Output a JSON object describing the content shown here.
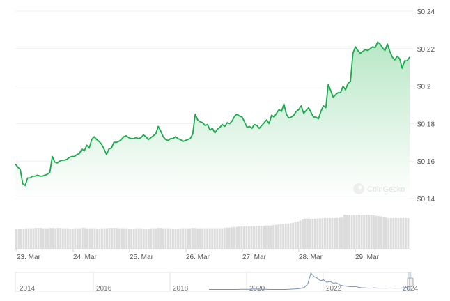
{
  "chart_data": {
    "type": "area",
    "watermark": "CoinGecko",
    "y_ticks": [
      "$0.24",
      "$0.22",
      "$0.2",
      "$0.18",
      "$0.16",
      "$0.14"
    ],
    "y_tick_values": [
      0.24,
      0.22,
      0.2,
      0.18,
      0.16,
      0.14
    ],
    "ylim": [
      0.14,
      0.24
    ],
    "x_ticks": [
      "23. Mar",
      "24. Mar",
      "25. Mar",
      "26. Mar",
      "27. Mar",
      "28. Mar",
      "29. Mar"
    ],
    "grid": true,
    "colors": {
      "line": "#1aa94c",
      "fill_top": "#b4e6c3",
      "fill_bottom": "#ffffff",
      "volume": "#dcdcdc",
      "navigator": "#7a8fb8",
      "grid": "#efefef",
      "text": "#555555"
    },
    "price": [
      0.1585,
      0.1568,
      0.1555,
      0.148,
      0.147,
      0.151,
      0.151,
      0.152,
      0.152,
      0.1525,
      0.152,
      0.152,
      0.1525,
      0.153,
      0.154,
      0.1625,
      0.1595,
      0.159,
      0.16,
      0.1605,
      0.1605,
      0.161,
      0.162,
      0.1625,
      0.1625,
      0.1635,
      0.164,
      0.1665,
      0.1655,
      0.1685,
      0.167,
      0.1715,
      0.173,
      0.1715,
      0.1705,
      0.169,
      0.1665,
      0.1635,
      0.1665,
      0.167,
      0.17,
      0.17,
      0.1705,
      0.1715,
      0.173,
      0.1735,
      0.1725,
      0.172,
      0.172,
      0.1725,
      0.172,
      0.1725,
      0.174,
      0.173,
      0.1715,
      0.1725,
      0.1735,
      0.1745,
      0.1785,
      0.176,
      0.173,
      0.1715,
      0.171,
      0.172,
      0.172,
      0.173,
      0.172,
      0.1715,
      0.1705,
      0.171,
      0.1715,
      0.172,
      0.1745,
      0.185,
      0.182,
      0.181,
      0.1805,
      0.179,
      0.1795,
      0.1765,
      0.1775,
      0.175,
      0.177,
      0.178,
      0.1795,
      0.1785,
      0.1805,
      0.18,
      0.1815,
      0.184,
      0.185,
      0.184,
      0.1835,
      0.181,
      0.178,
      0.1785,
      0.1775,
      0.1795,
      0.179,
      0.1775,
      0.179,
      0.1805,
      0.182,
      0.18,
      0.1845,
      0.1835,
      0.1855,
      0.1875,
      0.1865,
      0.1905,
      0.185,
      0.183,
      0.1835,
      0.1845,
      0.1865,
      0.1875,
      0.1895,
      0.1855,
      0.187,
      0.1885,
      0.186,
      0.1835,
      0.1835,
      0.1825,
      0.1865,
      0.1895,
      0.1885,
      0.201,
      0.1975,
      0.194,
      0.1955,
      0.1965,
      0.1965,
      0.2,
      0.198,
      0.2015,
      0.2025,
      0.2175,
      0.221,
      0.219,
      0.2175,
      0.2185,
      0.2195,
      0.219,
      0.22,
      0.221,
      0.2205,
      0.2235,
      0.2225,
      0.2205,
      0.219,
      0.2225,
      0.2185,
      0.2155,
      0.214,
      0.216,
      0.2145,
      0.2095,
      0.2135,
      0.2135,
      0.2155
    ],
    "volume": [
      0.58,
      0.59,
      0.59,
      0.59,
      0.6,
      0.6,
      0.6,
      0.6,
      0.61,
      0.61,
      0.61,
      0.6,
      0.6,
      0.6,
      0.61,
      0.61,
      0.6,
      0.61,
      0.61,
      0.6,
      0.6,
      0.6,
      0.59,
      0.59,
      0.6,
      0.6,
      0.6,
      0.61,
      0.61,
      0.6,
      0.6,
      0.6,
      0.6,
      0.59,
      0.59,
      0.6,
      0.6,
      0.6,
      0.61,
      0.61,
      0.61,
      0.61,
      0.6,
      0.6,
      0.6,
      0.6,
      0.59,
      0.59,
      0.59,
      0.6,
      0.6,
      0.6,
      0.59,
      0.59,
      0.59,
      0.6,
      0.6,
      0.6,
      0.61,
      0.61,
      0.6,
      0.6,
      0.6,
      0.6,
      0.59,
      0.59,
      0.59,
      0.6,
      0.6,
      0.6,
      0.6,
      0.6,
      0.61,
      0.61,
      0.6,
      0.6,
      0.6,
      0.6,
      0.6,
      0.6,
      0.6,
      0.6,
      0.6,
      0.6,
      0.6,
      0.61,
      0.62,
      0.62,
      0.63,
      0.64,
      0.64,
      0.65,
      0.65,
      0.65,
      0.66,
      0.66,
      0.66,
      0.66,
      0.67,
      0.67,
      0.67,
      0.67,
      0.68,
      0.68,
      0.68,
      0.69,
      0.7,
      0.71,
      0.72,
      0.73,
      0.74,
      0.74,
      0.75,
      0.76,
      0.78,
      0.8,
      0.83,
      0.86,
      0.88,
      0.88,
      0.88,
      0.88,
      0.88,
      0.89,
      0.89,
      0.89,
      0.9,
      0.9,
      0.9,
      0.9,
      0.9,
      0.9,
      0.91,
      0.91,
      1.0,
      1.0,
      1.0,
      0.99,
      0.99,
      0.99,
      0.99,
      0.98,
      0.98,
      0.98,
      0.98,
      0.98,
      0.98,
      0.97,
      0.96,
      0.95,
      0.92,
      0.91,
      0.9,
      0.9,
      0.9,
      0.9,
      0.9,
      0.9,
      0.9,
      0.9,
      0.9
    ],
    "navigator": {
      "years": [
        "2014",
        "2016",
        "2018",
        "2020",
        "2022",
        "2024"
      ],
      "series": [
        0.02,
        0.02,
        0.02,
        0.02,
        0.02,
        0.02,
        0.02,
        0.02,
        0.02,
        0.02,
        0.03,
        0.03,
        0.03,
        0.03,
        0.05,
        0.04,
        0.03,
        0.03,
        0.03,
        0.02,
        0.02,
        0.02,
        0.02,
        0.02,
        0.02,
        0.03,
        0.04,
        0.05,
        0.06,
        0.1,
        0.15,
        0.35,
        1.0,
        0.8,
        0.7,
        0.55,
        0.6,
        0.45,
        0.5,
        0.4,
        0.42,
        0.3,
        0.25,
        0.22,
        0.2,
        0.18,
        0.2,
        0.15,
        0.12,
        0.12,
        0.1,
        0.1,
        0.12,
        0.1,
        0.1,
        0.1,
        0.1,
        0.11,
        0.1,
        0.1,
        0.1,
        0.12,
        0.15,
        0.2
      ]
    }
  }
}
